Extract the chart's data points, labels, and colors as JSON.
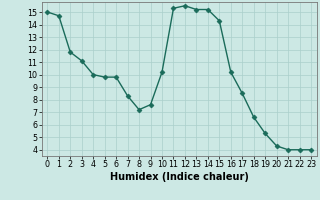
{
  "x": [
    0,
    1,
    2,
    3,
    4,
    5,
    6,
    7,
    8,
    9,
    10,
    11,
    12,
    13,
    14,
    15,
    16,
    17,
    18,
    19,
    20,
    21,
    22,
    23
  ],
  "y": [
    15,
    14.7,
    11.8,
    11.1,
    10.0,
    9.8,
    9.8,
    8.3,
    7.2,
    7.6,
    10.2,
    15.3,
    15.5,
    15.2,
    15.2,
    14.3,
    10.2,
    8.5,
    6.6,
    5.3,
    4.3,
    4.0,
    4.0,
    4.0
  ],
  "line_color": "#1a6b5a",
  "marker": "D",
  "markersize": 2.5,
  "linewidth": 1.0,
  "bg_color": "#cce8e4",
  "grid_color": "#aacfcb",
  "xlabel": "Humidex (Indice chaleur)",
  "xlim": [
    -0.5,
    23.5
  ],
  "ylim": [
    3.5,
    15.8
  ],
  "yticks": [
    4,
    5,
    6,
    7,
    8,
    9,
    10,
    11,
    12,
    13,
    14,
    15
  ],
  "xticks": [
    0,
    1,
    2,
    3,
    4,
    5,
    6,
    7,
    8,
    9,
    10,
    11,
    12,
    13,
    14,
    15,
    16,
    17,
    18,
    19,
    20,
    21,
    22,
    23
  ],
  "tick_fontsize": 5.8,
  "label_fontsize": 7.0
}
